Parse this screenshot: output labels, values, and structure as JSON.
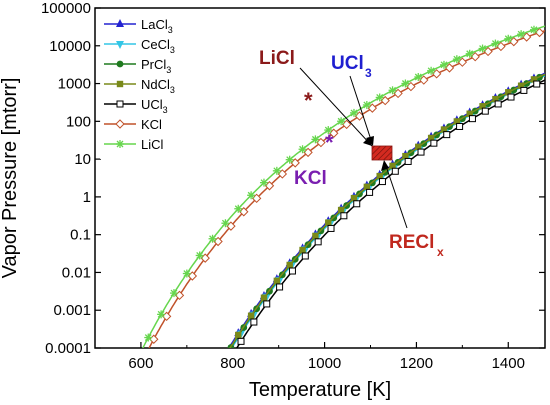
{
  "chart_data": {
    "type": "line",
    "xlabel": "Temperature [K]",
    "ylabel": "Vapor Pressure [mtorr]",
    "xlim": [
      500,
      1480
    ],
    "ylog": true,
    "ylim": [
      0.0001,
      100000
    ],
    "xticks": [
      600,
      800,
      1000,
      1200,
      1400
    ],
    "xtick_labels": [
      "600",
      "800",
      "1000",
      "1200",
      "1400"
    ],
    "yticks": [
      0.0001,
      0.001,
      0.01,
      0.1,
      1,
      10,
      100,
      1000,
      10000,
      100000
    ],
    "ytick_labels": [
      "0.0001",
      "0.001",
      "0.01",
      "0.1",
      "1",
      "10",
      "100",
      "1000",
      "10000",
      "100000"
    ],
    "legend_position": "top-left",
    "series": [
      {
        "name": "LaCl",
        "subscript": "3",
        "color": "#2323d0",
        "marker": "triangle-up",
        "log10_A": 11.64,
        "B": 12380
      },
      {
        "name": "CeCl",
        "subscript": "3",
        "color": "#33c6e6",
        "marker": "triangle-down",
        "log10_A": 11.64,
        "B": 12480
      },
      {
        "name": "PrCl",
        "subscript": "3",
        "color": "#1f7a1f",
        "marker": "circle",
        "log10_A": 11.64,
        "B": 12440
      },
      {
        "name": "NdCl",
        "subscript": "3",
        "color": "#7a8a1a",
        "marker": "square",
        "log10_A": 11.64,
        "B": 12420
      },
      {
        "name": "UCl",
        "subscript": "3",
        "color": "#000000",
        "marker": "open-square",
        "log10_A": 11.64,
        "B": 12650
      },
      {
        "name": "KCl",
        "subscript": "",
        "color": "#c0522a",
        "marker": "open-diamond",
        "log10_A": 10.42,
        "B": 8910
      },
      {
        "name": "LiCl",
        "subscript": "",
        "color": "#66d64d",
        "marker": "asterisk",
        "log10_A": 10.4,
        "B": 8700
      }
    ],
    "annotations": {
      "licl": {
        "text": "LiCl",
        "color": "#8b1a1a"
      },
      "ucl3": {
        "text": "UCl",
        "sub": "3",
        "color": "#1f1fd0"
      },
      "kcl": {
        "text": "KCl",
        "color": "#7a1fb0"
      },
      "recl": {
        "text": "RECl",
        "sub": "x",
        "color": "#c0281e"
      }
    }
  }
}
